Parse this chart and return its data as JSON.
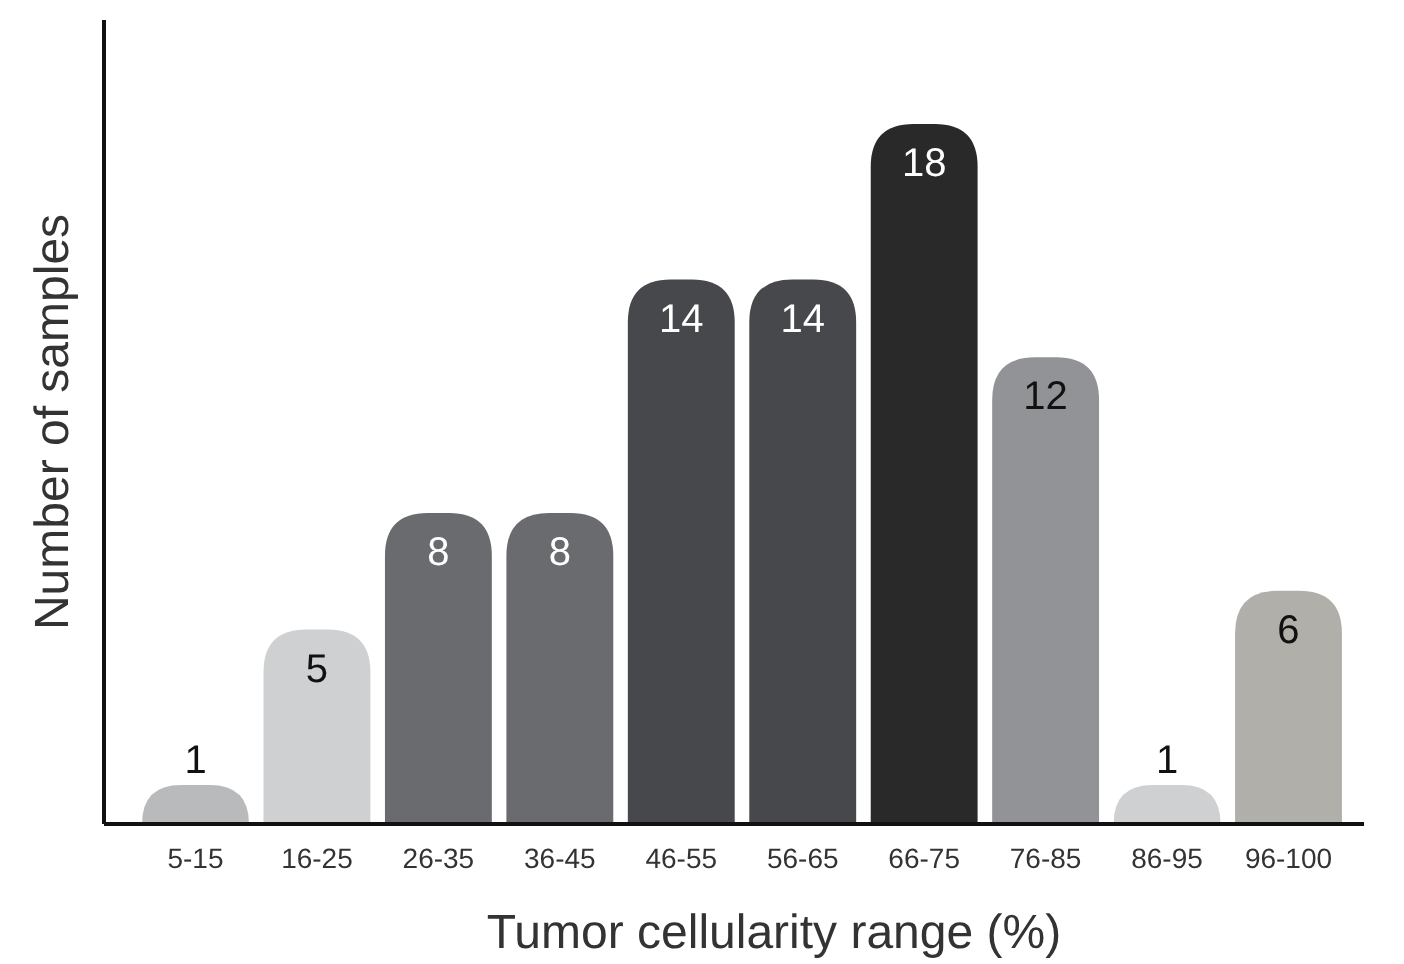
{
  "chart_data": {
    "type": "bar",
    "xlabel": "Tumor cellularity range (%)",
    "ylabel": "Number of samples",
    "categories": [
      "5-15",
      "16-25",
      "26-35",
      "36-45",
      "46-55",
      "56-65",
      "66-75",
      "76-85",
      "86-95",
      "96-100"
    ],
    "values": [
      1,
      5,
      8,
      8,
      14,
      14,
      18,
      12,
      1,
      6
    ],
    "colors": [
      "#b9babc",
      "#cfd0d2",
      "#6a6b6e",
      "#6a6b6e",
      "#47484b",
      "#47484b",
      "#292929",
      "#929396",
      "#cfd0d2",
      "#b1afa9"
    ],
    "data_labels": true
  }
}
